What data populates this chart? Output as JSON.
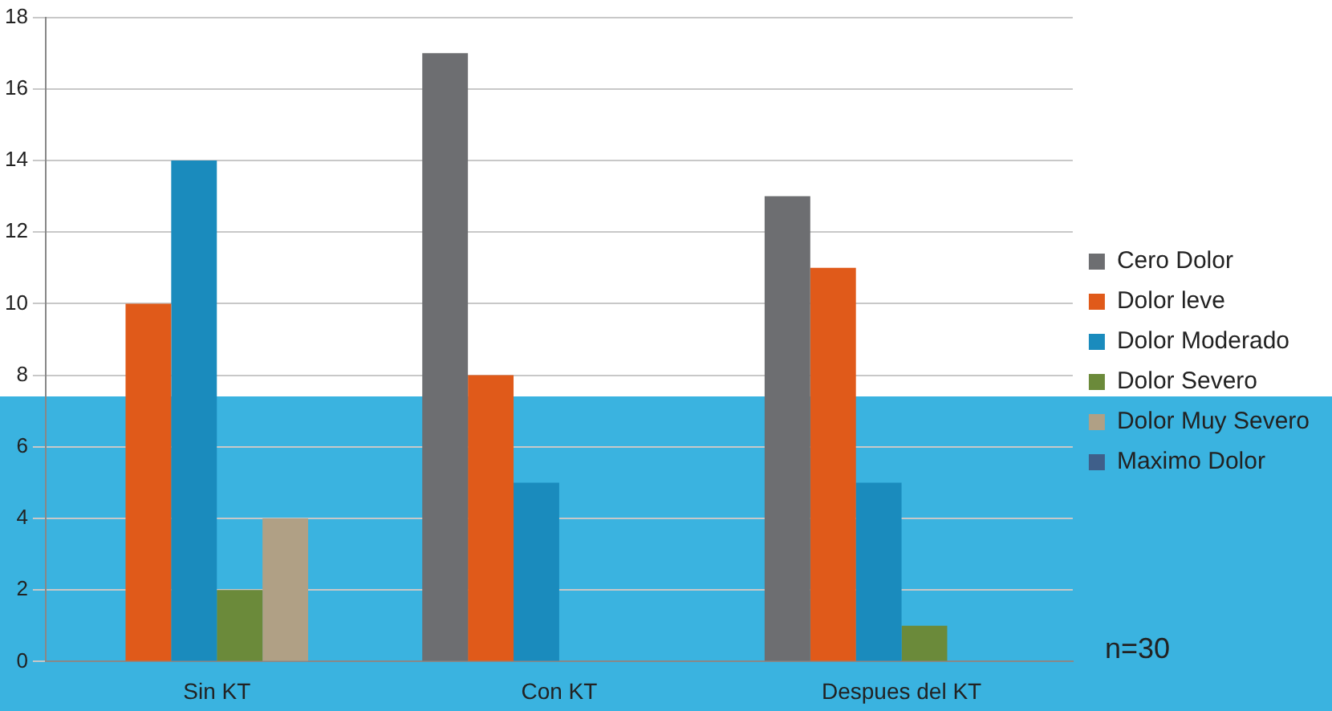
{
  "chart_data": {
    "type": "bar",
    "categories": [
      "Sin KT",
      "Con KT",
      "Despues del KT"
    ],
    "series": [
      {
        "name": "Cero Dolor",
        "color": "#6d6e71",
        "values": [
          0,
          17,
          13
        ]
      },
      {
        "name": "Dolor leve",
        "color": "#e05a1a",
        "values": [
          10,
          8,
          11
        ]
      },
      {
        "name": "Dolor Moderado",
        "color": "#1a8bbd",
        "values": [
          14,
          5,
          5
        ]
      },
      {
        "name": "Dolor Severo",
        "color": "#6b8a3a",
        "values": [
          2,
          0,
          1
        ]
      },
      {
        "name": "Dolor Muy Severo",
        "color": "#b0a085",
        "values": [
          4,
          0,
          0
        ]
      },
      {
        "name": "Maximo Dolor",
        "color": "#3f5f8a",
        "values": [
          0,
          0,
          0
        ]
      }
    ],
    "ylim": [
      0,
      18
    ],
    "yticks": [
      0,
      2,
      4,
      6,
      8,
      10,
      12,
      14,
      16,
      18
    ],
    "grid": "y",
    "legend": "right",
    "annotations": [
      "n=30"
    ]
  }
}
